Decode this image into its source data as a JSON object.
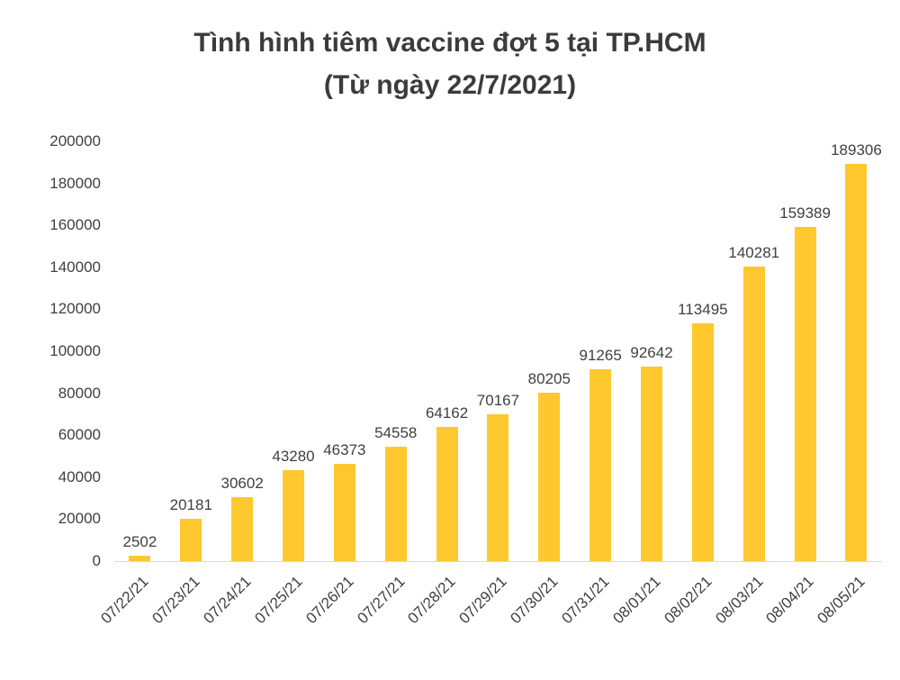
{
  "page": {
    "background_color": "#FFFFFF"
  },
  "chart_data": {
    "type": "bar",
    "title": "Tình hình tiêm vaccine đợt 5 tại TP.HCM",
    "subtitle": "(Từ ngày 22/7/2021)",
    "categories": [
      "07/22/21",
      "07/23/21",
      "07/24/21",
      "07/25/21",
      "07/26/21",
      "07/27/21",
      "07/28/21",
      "07/29/21",
      "07/30/21",
      "07/31/21",
      "08/01/21",
      "08/02/21",
      "08/03/21",
      "08/04/21",
      "08/05/21"
    ],
    "values": [
      2502,
      20181,
      30602,
      43280,
      46373,
      54558,
      64162,
      70167,
      80205,
      91265,
      92642,
      113495,
      140281,
      159389,
      189306
    ],
    "data_labels": true,
    "ylim": [
      0,
      200000
    ],
    "yticks": [
      0,
      20000,
      40000,
      60000,
      80000,
      100000,
      120000,
      140000,
      160000,
      180000,
      200000
    ],
    "grid": false,
    "legend": "none",
    "bar_color": "#FFC82E",
    "text_color": "#404040",
    "title_color": "#3B3B3B",
    "axis_line_color": "#D9D9D9"
  }
}
